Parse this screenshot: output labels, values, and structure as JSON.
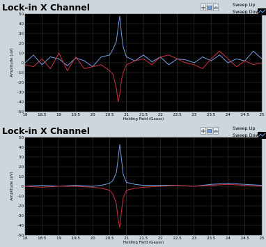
{
  "panels": [
    {
      "title": "Lock-in X Channel",
      "legend": [
        "Sweep Up",
        "Sweep Down"
      ],
      "colors": {
        "up": "#6f9fe6",
        "down": "#c8323c",
        "bg": "#000000",
        "grid": "#3a3a3a"
      },
      "chart_data": {
        "type": "line",
        "xlabel": "Holding Field (Gauss)",
        "ylabel": "Amplitude (uV)",
        "xlim": [
          18,
          25
        ],
        "ylim": [
          -50,
          50
        ],
        "xticks": [
          "18",
          "18.5",
          "19",
          "19.5",
          "20",
          "20.5",
          "21",
          "21.5",
          "22",
          "22.5",
          "23",
          "23.5",
          "24",
          "24.5",
          "25"
        ],
        "yticks": [
          "50",
          "40",
          "30",
          "20",
          "10",
          "0",
          "-10",
          "-20",
          "-30",
          "-40",
          "-50"
        ],
        "series": [
          {
            "name": "Sweep Up",
            "x": [
              18,
              18.25,
              18.5,
              18.75,
              19,
              19.25,
              19.5,
              19.75,
              20,
              20.25,
              20.5,
              20.6,
              20.7,
              20.75,
              20.8,
              20.85,
              20.9,
              21,
              21.25,
              21.5,
              21.75,
              22,
              22.25,
              22.5,
              22.75,
              23,
              23.25,
              23.5,
              23.75,
              24,
              24.25,
              24.5,
              24.75,
              25
            ],
            "y": [
              0,
              8,
              -2,
              6,
              4,
              -3,
              5,
              2,
              -4,
              6,
              8,
              14,
              22,
              36,
              48,
              30,
              16,
              6,
              2,
              8,
              1,
              6,
              -2,
              4,
              3,
              0,
              6,
              2,
              8,
              0,
              4,
              2,
              12,
              4
            ]
          },
          {
            "name": "Sweep Down",
            "x": [
              18,
              18.25,
              18.5,
              18.75,
              19,
              19.25,
              19.5,
              19.75,
              20,
              20.25,
              20.5,
              20.6,
              20.7,
              20.75,
              20.8,
              20.85,
              20.9,
              21,
              21.25,
              21.5,
              21.75,
              22,
              22.25,
              22.5,
              22.75,
              23,
              23.25,
              23.5,
              23.75,
              24,
              24.25,
              24.5,
              24.75,
              25
            ],
            "y": [
              -2,
              -4,
              4,
              -6,
              10,
              -8,
              6,
              -6,
              -4,
              -2,
              -8,
              -12,
              -26,
              -40,
              -32,
              -18,
              -10,
              -2,
              2,
              4,
              -2,
              6,
              8,
              4,
              0,
              -2,
              -6,
              4,
              12,
              4,
              -4,
              2,
              -2,
              0
            ]
          }
        ]
      }
    },
    {
      "title": "Lock-in X Channel",
      "legend": [
        "Sweep Up",
        "Sweep Down"
      ],
      "colors": {
        "up": "#6f9fe6",
        "down": "#c8323c",
        "bg": "#000000",
        "grid": "#3a3a3a"
      },
      "chart_data": {
        "type": "line",
        "xlabel": "Holding Field (Gauss)",
        "ylabel": "Amplitude (uV)",
        "xlim": [
          18,
          25
        ],
        "ylim": [
          -50,
          50
        ],
        "xticks": [
          "18",
          "18.5",
          "19",
          "19.5",
          "20",
          "20.5",
          "21",
          "21.5",
          "22",
          "22.5",
          "23",
          "23.5",
          "24",
          "24.5",
          "25"
        ],
        "yticks": [
          "50",
          "40",
          "30",
          "20",
          "10",
          "0",
          "-10",
          "-20",
          "-30",
          "-40",
          "-50"
        ],
        "series": [
          {
            "name": "Sweep Up",
            "x": [
              18,
              18.5,
              19,
              19.5,
              20,
              20.25,
              20.5,
              20.6,
              20.7,
              20.75,
              20.8,
              20.85,
              20.9,
              21,
              21.25,
              21.5,
              22,
              22.5,
              23,
              23.5,
              24,
              24.5,
              25
            ],
            "y": [
              0,
              1,
              0,
              1,
              0,
              1,
              3,
              6,
              14,
              28,
              43,
              28,
              12,
              4,
              2,
              1,
              1,
              1,
              0,
              2,
              3,
              2,
              1
            ]
          },
          {
            "name": "Sweep Down",
            "x": [
              18,
              18.5,
              19,
              19.5,
              20,
              20.25,
              20.5,
              20.6,
              20.7,
              20.75,
              20.8,
              20.85,
              20.9,
              21,
              21.25,
              21.5,
              22,
              22.5,
              23,
              23.5,
              24,
              24.5,
              25
            ],
            "y": [
              0,
              -1,
              0,
              0,
              -1,
              -2,
              -4,
              -8,
              -18,
              -34,
              -42,
              -26,
              -12,
              -4,
              -2,
              -1,
              0,
              1,
              0,
              1,
              2,
              1,
              0
            ]
          }
        ]
      }
    }
  ]
}
